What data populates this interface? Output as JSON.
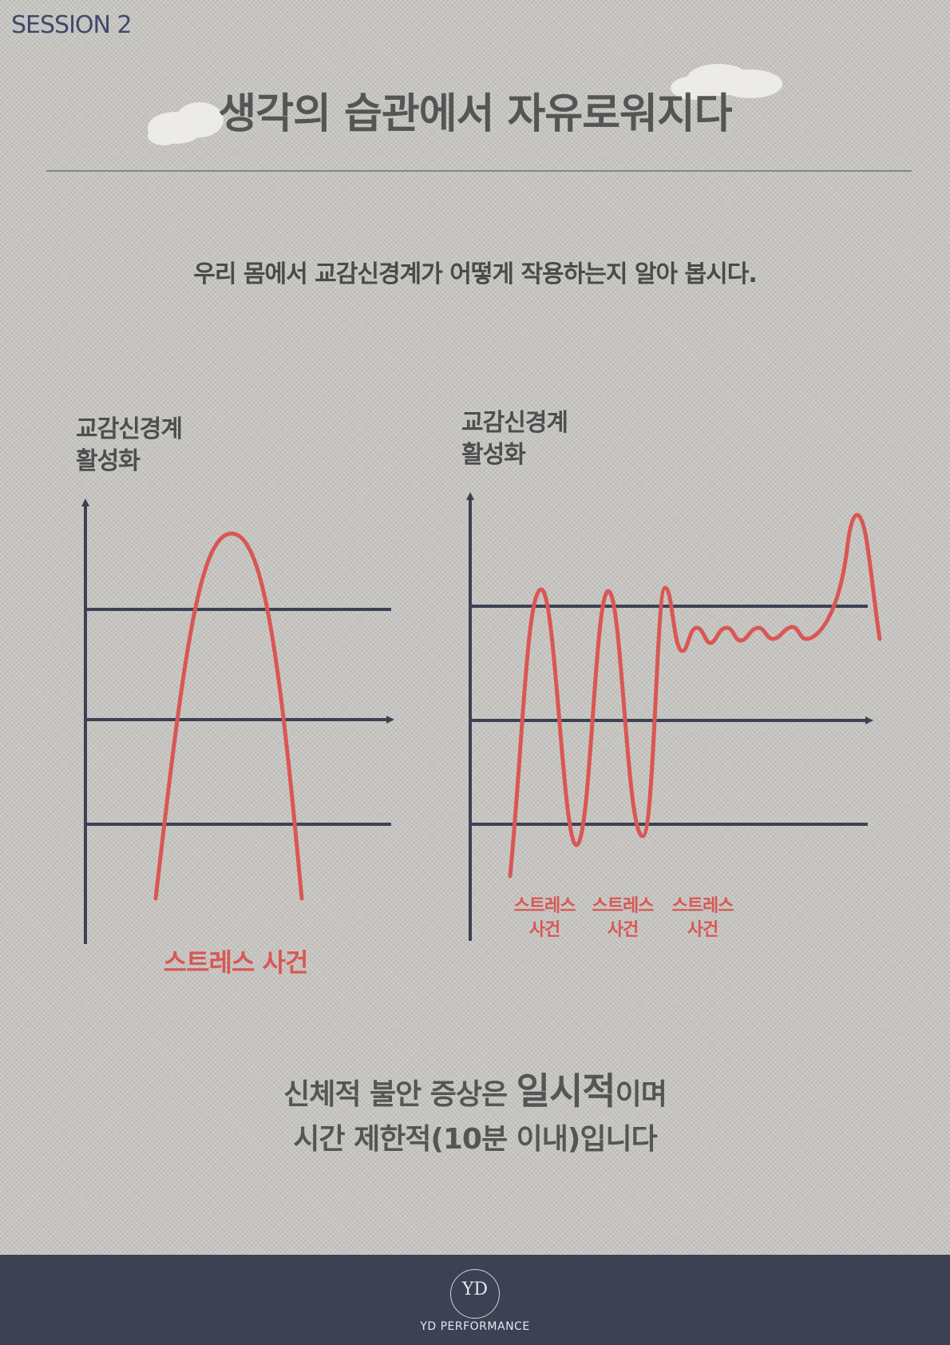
{
  "header": {
    "session": "SESSION 2",
    "title": "생각의 습관에서 자유로워지다",
    "subtitle": "우리 몸에서 교감신경계가 어떻게 작용하는지 알아 봅시다."
  },
  "diagrams": {
    "left": {
      "axis_label_line1": "교감신경계",
      "axis_label_line2": "활성화",
      "event_label": "스트레스 사건"
    },
    "right": {
      "axis_label_line1": "교감신경계",
      "axis_label_line2": "활성화",
      "events": [
        {
          "line1": "스트레스",
          "line2": "사건"
        },
        {
          "line1": "스트레스",
          "line2": "사건"
        },
        {
          "line1": "스트레스",
          "line2": "사건"
        }
      ]
    }
  },
  "conclusion": {
    "part1": "신체적 불안 증상은 ",
    "emphasis": "일시적",
    "part2": "이며",
    "line2": "시간 제한적(10분 이내)입니다"
  },
  "footer": {
    "brand": "YD PERFORMANCE",
    "logo_letters": "YD"
  },
  "colors": {
    "navy": "#3d4154",
    "red": "#d95754",
    "text": "#555555"
  }
}
